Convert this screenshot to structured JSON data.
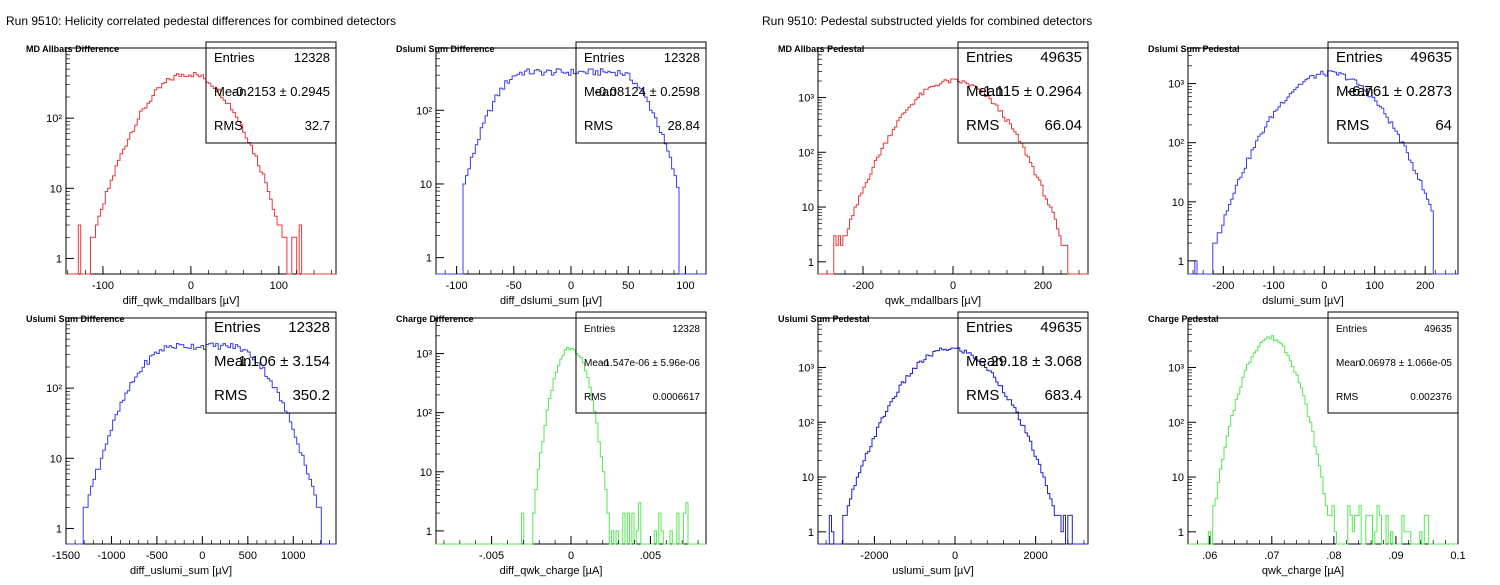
{
  "canvases": [
    {
      "title": "Run 9510: Helicity correlated pedestal differences for combined detectors"
    },
    {
      "title": "Run 9510: Pedestal substructed yields for combined detectors"
    }
  ],
  "stat_labels": {
    "entries": "Entries",
    "mean": "Mean",
    "rms": "RMS",
    "pm": "±"
  },
  "chart_data": [
    {
      "type": "histogram",
      "title": "MD Allbars Difference",
      "xlabel": "diff_qwk_mdallbars [µV]",
      "color": "#e8393a",
      "logy": true,
      "xlim": [
        -142,
        165
      ],
      "ylim": [
        0.6,
        1000
      ],
      "xticks": [
        -100,
        0,
        100
      ],
      "yticks": [
        {
          "v": 1,
          "t": "1"
        },
        {
          "v": 10,
          "t": "10"
        },
        {
          "v": 100,
          "t": "10²"
        }
      ],
      "stats": {
        "entries": "12328",
        "mean": "-0.2153",
        "mean_err": "0.2945",
        "rms": "32.7"
      },
      "stats_font": 13,
      "shape": {
        "mu": -3,
        "sigma": 33,
        "peak": 430,
        "lo": -135,
        "hi": 125,
        "flat": 0,
        "n": 110
      }
    },
    {
      "type": "histogram",
      "title": "Dslumi Sum Difference",
      "xlabel": "diff_dslumi_sum [µV]",
      "color": "#3c3cf0",
      "logy": true,
      "xlim": [
        -118,
        118
      ],
      "ylim": [
        0.6,
        700
      ],
      "xticks": [
        -100,
        -50,
        0,
        50,
        100
      ],
      "yticks": [
        {
          "v": 1,
          "t": "1"
        },
        {
          "v": 10,
          "t": "10"
        },
        {
          "v": 100,
          "t": "10²"
        }
      ],
      "stats": {
        "entries": "12328",
        "mean": "-0.08124",
        "mean_err": "0.2598",
        "rms": "28.84"
      },
      "stats_font": 13,
      "shape": {
        "mu": 0,
        "sigma": 20,
        "peak": 330,
        "lo": -95,
        "hi": 95,
        "flat": 40,
        "n": 110
      }
    },
    {
      "type": "histogram",
      "title": "MD Allbars Pedestal",
      "xlabel": "qwk_mdallbars [µV]",
      "color": "#e8393a",
      "logy": true,
      "xlim": [
        -300,
        300
      ],
      "ylim": [
        0.6,
        8000
      ],
      "xticks": [
        -200,
        0,
        200
      ],
      "yticks": [
        {
          "v": 1,
          "t": "1"
        },
        {
          "v": 10,
          "t": "10"
        },
        {
          "v": 100,
          "t": "10²"
        },
        {
          "v": 1000,
          "t": "10³"
        }
      ],
      "stats": {
        "entries": "49635",
        "mean": "-1.115",
        "mean_err": "0.2964",
        "rms": "66.04"
      },
      "stats_font": 15,
      "shape": {
        "mu": 0,
        "sigma": 66,
        "peak": 2000,
        "lo": -265,
        "hi": 265,
        "flat": 0,
        "n": 120
      }
    },
    {
      "type": "histogram",
      "title": "Dslumi Sum Pedestal",
      "xlabel": "dslumi_sum [µV]",
      "color": "#3c3cf0",
      "logy": true,
      "xlim": [
        -270,
        265
      ],
      "ylim": [
        0.6,
        4000
      ],
      "xticks": [
        -200,
        -100,
        0,
        100,
        200
      ],
      "yticks": [
        {
          "v": 1,
          "t": "1"
        },
        {
          "v": 10,
          "t": "10"
        },
        {
          "v": 100,
          "t": "10²"
        },
        {
          "v": 1000,
          "t": "10³"
        }
      ],
      "stats": {
        "entries": "49635",
        "mean": "-6.761",
        "mean_err": "0.2873",
        "rms": "64"
      },
      "stats_font": 15,
      "shape": {
        "mu": 10,
        "sigma": 62,
        "peak": 1500,
        "lo": -255,
        "hi": 215,
        "flat": 0,
        "n": 120
      }
    },
    {
      "type": "histogram",
      "title": "Uslumi Sum Difference",
      "xlabel": "diff_uslumi_sum [µV]",
      "color": "#3c3cf0",
      "logy": true,
      "xlim": [
        -1500,
        1470
      ],
      "ylim": [
        0.6,
        1000
      ],
      "xticks": [
        -1500,
        -1000,
        -500,
        0,
        500,
        1000
      ],
      "yticks": [
        {
          "v": 1,
          "t": "1"
        },
        {
          "v": 10,
          "t": "10"
        },
        {
          "v": 100,
          "t": "10²"
        }
      ],
      "stats": {
        "entries": "12328",
        "mean": "1.106",
        "mean_err": "3.154",
        "rms": "350.2"
      },
      "stats_font": 15,
      "shape": {
        "mu": 0,
        "sigma": 300,
        "peak": 400,
        "lo": -1400,
        "hi": 1300,
        "flat": 300,
        "n": 110
      }
    },
    {
      "type": "histogram",
      "title": "Charge Difference",
      "xlabel": "diff_qwk_charge [µA]",
      "color": "#55e855",
      "logy": true,
      "xlim": [
        -0.0085,
        0.0085
      ],
      "ylim": [
        0.6,
        4000
      ],
      "xticks": [
        -0.005,
        0,
        0.005
      ],
      "yticks": [
        {
          "v": 1,
          "t": "1"
        },
        {
          "v": 10,
          "t": "10"
        },
        {
          "v": 100,
          "t": "10²"
        },
        {
          "v": 1000,
          "t": "10³"
        }
      ],
      "stats": {
        "entries": "12328",
        "mean": "-1.547e-06",
        "mean_err": "5.96e-06",
        "rms": "0.0006617"
      },
      "stats_font": 10,
      "shape": {
        "mu": 0,
        "sigma": 0.00066,
        "peak": 1300,
        "lo": -0.0033,
        "hi": 0.0075,
        "flat": 0,
        "n": 120
      }
    },
    {
      "type": "histogram",
      "title": "Uslumi Sum Pedestal",
      "xlabel": "uslumi_sum [µV]",
      "color": "#2020d0",
      "logy": true,
      "xlim": [
        -3400,
        3300
      ],
      "ylim": [
        0.6,
        8000
      ],
      "xticks": [
        -2000,
        0,
        2000
      ],
      "yticks": [
        {
          "v": 1,
          "t": "1"
        },
        {
          "v": 10,
          "t": "10"
        },
        {
          "v": 100,
          "t": "10²"
        },
        {
          "v": 1000,
          "t": "10³"
        }
      ],
      "stats": {
        "entries": "49635",
        "mean": "29.18",
        "mean_err": "3.068",
        "rms": "683.4"
      },
      "stats_font": 15,
      "shape": {
        "mu": -100,
        "sigma": 700,
        "peak": 2200,
        "lo": -3150,
        "hi": 3000,
        "flat": 0,
        "n": 120
      }
    },
    {
      "type": "histogram",
      "title": "Charge Pedestal",
      "xlabel": "qwk_charge [µA]",
      "color": "#55e855",
      "logy": true,
      "xlim": [
        0.0565,
        0.1
      ],
      "ylim": [
        0.6,
        8000
      ],
      "xticks": [
        0.06,
        0.07,
        0.08,
        0.09,
        0.1
      ],
      "yticks": [
        {
          "v": 1,
          "t": "1"
        },
        {
          "v": 10,
          "t": "10"
        },
        {
          "v": 100,
          "t": "10²"
        },
        {
          "v": 1000,
          "t": "10³"
        }
      ],
      "stats": {
        "entries": "49635",
        "mean": "0.06978",
        "mean_err": "1.066e-05",
        "rms": "0.002376"
      },
      "stats_font": 10,
      "shape": {
        "mu": 0.0698,
        "sigma": 0.0024,
        "peak": 3500,
        "lo": 0.0593,
        "hi": 0.097,
        "flat": 0,
        "n": 120
      }
    }
  ]
}
